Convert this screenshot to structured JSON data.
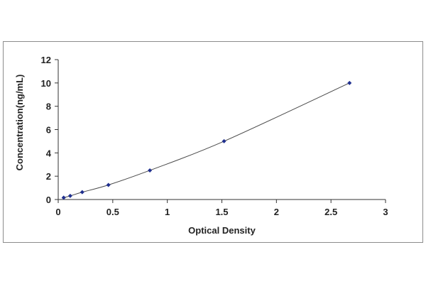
{
  "chart_data": {
    "type": "scatter",
    "xlabel": "Optical Density",
    "ylabel": "Concentration(ng/mL)",
    "xlim": [
      0,
      3
    ],
    "ylim": [
      0,
      12
    ],
    "x_ticks": [
      "0",
      "0.5",
      "1",
      "1.5",
      "2",
      "2.5",
      "3"
    ],
    "y_ticks": [
      "0",
      "2",
      "4",
      "6",
      "8",
      "10",
      "12"
    ],
    "grid": false,
    "legend": "none",
    "trendline": "smooth curve through points",
    "series": [
      {
        "x": [
          0.05,
          0.11,
          0.22,
          0.46,
          0.84,
          1.52,
          2.67
        ],
        "y": [
          0.16,
          0.31,
          0.63,
          1.25,
          2.5,
          5,
          10
        ]
      }
    ],
    "colors": {
      "marker": "#1f2f8f",
      "line": "#4a4a4a",
      "axis": "#333333"
    }
  }
}
